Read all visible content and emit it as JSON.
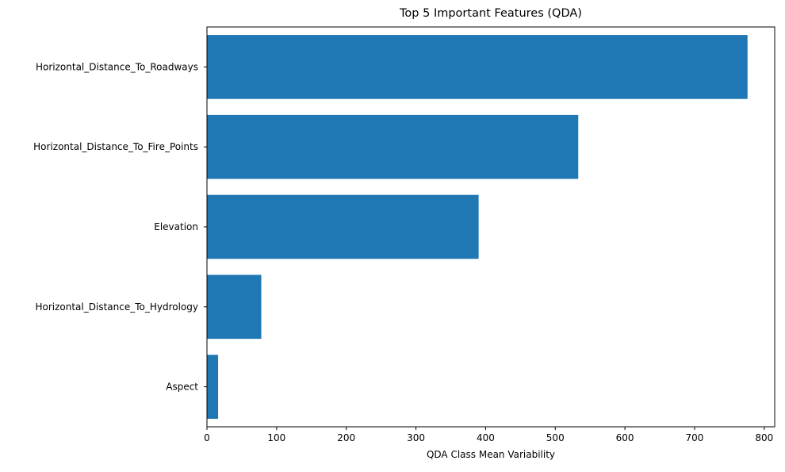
{
  "chart_data": {
    "type": "bar",
    "orientation": "horizontal",
    "title": "Top 5 Important Features (QDA)",
    "xlabel": "QDA Class Mean Variability",
    "ylabel": "",
    "categories": [
      "Horizontal_Distance_To_Roadways",
      "Horizontal_Distance_To_Fire_Points",
      "Elevation",
      "Horizontal_Distance_To_Hydrology",
      "Aspect"
    ],
    "values": [
      776,
      533,
      390,
      78,
      16
    ],
    "xlim": [
      0,
      815
    ],
    "xticks": [
      0,
      100,
      200,
      300,
      400,
      500,
      600,
      700,
      800
    ],
    "bar_color": "#1f77b4",
    "grid": false,
    "legend": "none"
  }
}
